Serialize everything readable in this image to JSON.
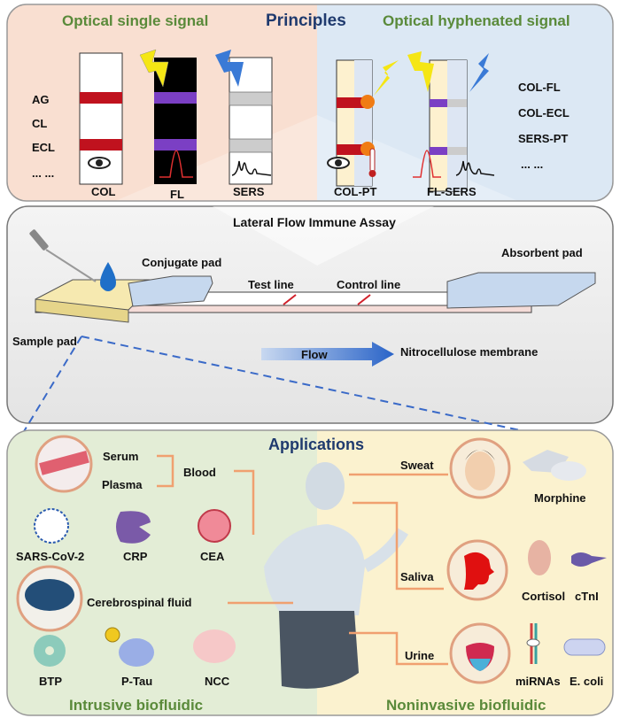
{
  "principles": {
    "title": "Principles",
    "single_title": "Optical single signal",
    "hyphenated_title": "Optical hyphenated signal",
    "single_methods": [
      "AG",
      "CL",
      "ECL",
      "... ..."
    ],
    "hyphenated_methods": [
      "COL-FL",
      "COL-ECL",
      "SERS-PT",
      "... ..."
    ],
    "strips": [
      "COL",
      "FL",
      "SERS",
      "COL-PT",
      "FL-SERS"
    ],
    "colors": {
      "single_bg": "#f9dfd1",
      "hyphenated_bg": "#dce8f4",
      "line_red": "#c0121e",
      "line_purple": "#7b3fc4"
    }
  },
  "lfia": {
    "title": "Lateral Flow Immune Assay",
    "sample_pad": "Sample pad",
    "conjugate_pad": "Conjugate pad",
    "test_line": "Test line",
    "control_line": "Control line",
    "absorbent_pad": "Absorbent pad",
    "flow": "Flow",
    "membrane": "Nitrocellulose membrane"
  },
  "applications": {
    "title": "Applications",
    "intrusive": {
      "title": "Intrusive biofluidic",
      "blood": "Blood",
      "serum": "Serum",
      "plasma": "Plasma",
      "blood_targets": [
        "SARS-CoV-2",
        "CRP",
        "CEA"
      ],
      "csf": "Cerebrospinal fluid",
      "csf_targets": [
        "BTP",
        "P-Tau",
        "NCC"
      ]
    },
    "noninvasive": {
      "title": "Noninvasive biofluidic",
      "sweat": "Sweat",
      "sweat_targets": [
        "Morphine"
      ],
      "saliva": "Saliva",
      "saliva_targets": [
        "Cortisol",
        "cTnI"
      ],
      "urine": "Urine",
      "urine_targets": [
        "miRNAs",
        "E. coli"
      ]
    },
    "colors": {
      "intrusive_bg": "#e3edd6",
      "noninvasive_bg": "#fbf2cf",
      "connector": "#f0a070"
    }
  }
}
